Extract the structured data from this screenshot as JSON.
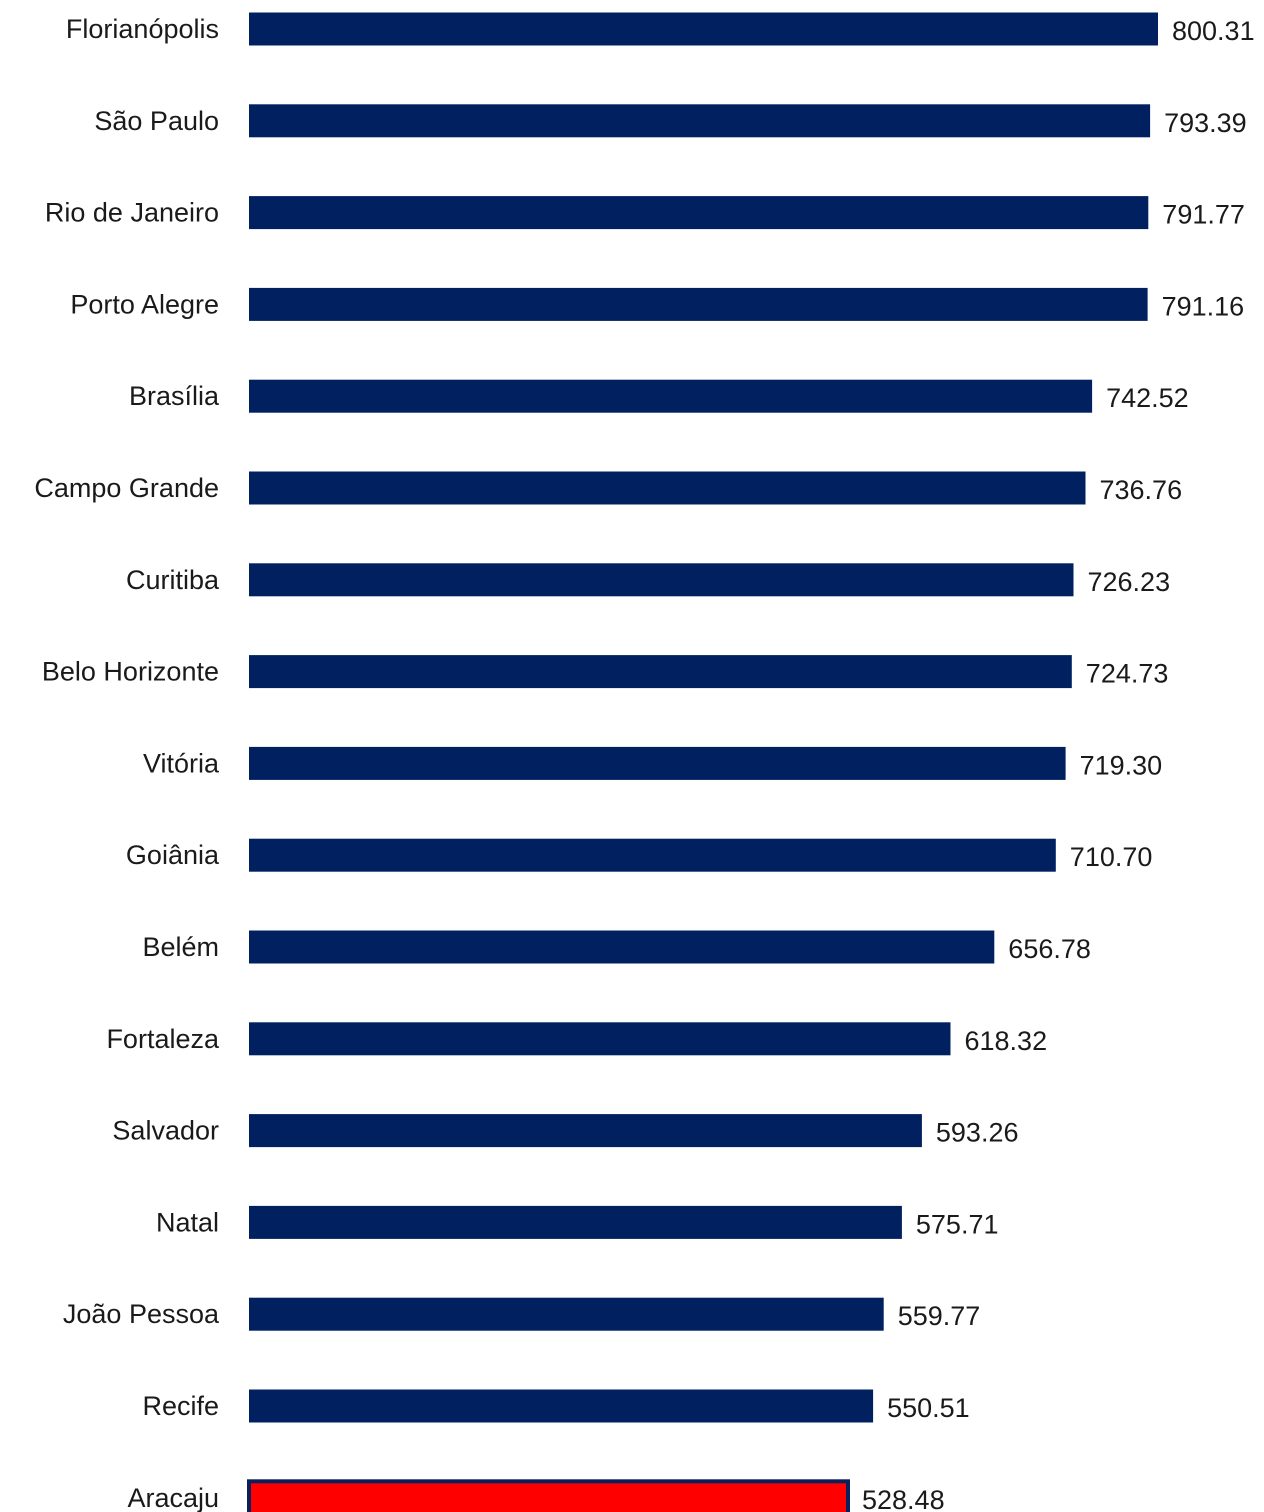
{
  "chart_data": {
    "type": "bar",
    "orientation": "horizontal",
    "categories": [
      "Florianópolis",
      "São Paulo",
      "Rio de Janeiro",
      "Porto Alegre",
      "Brasília",
      "Campo Grande",
      "Curitiba",
      "Belo Horizonte",
      "Vitória",
      "Goiânia",
      "Belém",
      "Fortaleza",
      "Salvador",
      "Natal",
      "João Pessoa",
      "Recife",
      "Aracaju"
    ],
    "values": [
      800.31,
      793.39,
      791.77,
      791.16,
      742.52,
      736.76,
      726.23,
      724.73,
      719.3,
      710.7,
      656.78,
      618.32,
      593.26,
      575.71,
      559.77,
      550.51,
      528.48
    ],
    "value_labels": [
      "800.31",
      "793.39",
      "791.77",
      "791.16",
      "742.52",
      "736.76",
      "726.23",
      "724.73",
      "719.30",
      "710.70",
      "656.78",
      "618.32",
      "593.26",
      "575.71",
      "559.77",
      "550.51",
      "528.48"
    ],
    "highlight": {
      "category": "Aracaju",
      "color": "#ff0000",
      "border_color": "#0a1f5c"
    },
    "bar_color": "#002060",
    "xlim": [
      0,
      800.31
    ],
    "grid": false,
    "legend": "none",
    "title": "",
    "xlabel": "",
    "ylabel": ""
  }
}
